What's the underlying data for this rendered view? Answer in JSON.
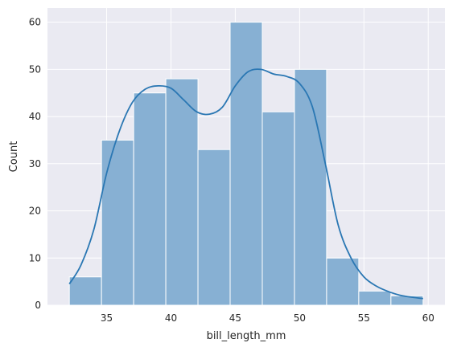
{
  "chart_data": {
    "type": "bar",
    "subtype": "histogram_with_kde",
    "title": "",
    "xlabel": "bill_length_mm",
    "ylabel": "Count",
    "xlim": [
      30.4,
      61.3
    ],
    "ylim": [
      0,
      63
    ],
    "grid": true,
    "legend": "none",
    "x_ticks": [
      35,
      40,
      45,
      50,
      55,
      60
    ],
    "y_ticks": [
      0,
      10,
      20,
      30,
      40,
      50,
      60
    ],
    "bins": [
      {
        "x0": 32.1,
        "x1": 34.6,
        "count": 6
      },
      {
        "x0": 34.6,
        "x1": 37.1,
        "count": 35
      },
      {
        "x0": 37.1,
        "x1": 39.6,
        "count": 45
      },
      {
        "x0": 39.6,
        "x1": 42.1,
        "count": 48
      },
      {
        "x0": 42.1,
        "x1": 44.6,
        "count": 33
      },
      {
        "x0": 44.6,
        "x1": 47.1,
        "count": 60
      },
      {
        "x0": 47.1,
        "x1": 49.6,
        "count": 41
      },
      {
        "x0": 49.6,
        "x1": 52.1,
        "count": 50
      },
      {
        "x0": 52.1,
        "x1": 54.6,
        "count": 10
      },
      {
        "x0": 54.6,
        "x1": 57.1,
        "count": 3
      },
      {
        "x0": 57.1,
        "x1": 59.6,
        "count": 2
      }
    ],
    "kde": {
      "x": [
        32.1,
        33.0,
        34.0,
        35.0,
        36.0,
        37.0,
        38.0,
        39.0,
        40.0,
        41.0,
        42.0,
        43.0,
        44.0,
        45.0,
        46.0,
        47.0,
        48.0,
        49.0,
        50.0,
        51.0,
        52.0,
        53.0,
        54.0,
        55.0,
        56.0,
        57.0,
        58.0,
        59.6
      ],
      "y": [
        4.5,
        8.5,
        16,
        28,
        37,
        43,
        45.8,
        46.5,
        46,
        43.5,
        41,
        40.5,
        42,
        46.5,
        49.5,
        50,
        49,
        48.5,
        47,
        42,
        30,
        17,
        10,
        6,
        4,
        2.8,
        2,
        1.4
      ]
    },
    "colors": {
      "bar_fill": "#87b0d3",
      "bar_edge": "#ffffff",
      "kde_line": "#2a77b3",
      "background": "#eaeaf2",
      "grid": "#ffffff"
    }
  }
}
